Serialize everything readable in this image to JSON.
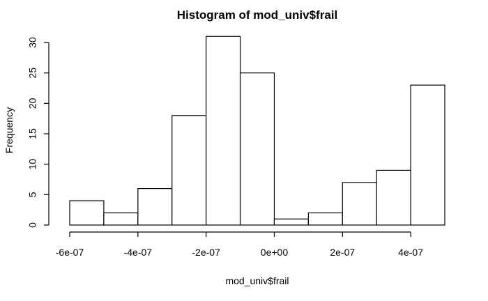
{
  "chart_data": {
    "type": "bar",
    "title": "Histogram of mod_univ$frail",
    "xlabel": "mod_univ$frail",
    "ylabel": "Frequency",
    "bins": [
      {
        "start": -6e-07,
        "end": -5e-07,
        "count": 4
      },
      {
        "start": -5e-07,
        "end": -4e-07,
        "count": 2
      },
      {
        "start": -4e-07,
        "end": -3e-07,
        "count": 6
      },
      {
        "start": -3e-07,
        "end": -2e-07,
        "count": 18
      },
      {
        "start": -2e-07,
        "end": -1e-07,
        "count": 31
      },
      {
        "start": -1e-07,
        "end": 0,
        "count": 25
      },
      {
        "start": 0,
        "end": 1e-07,
        "count": 1
      },
      {
        "start": 1e-07,
        "end": 2e-07,
        "count": 2
      },
      {
        "start": 2e-07,
        "end": 3e-07,
        "count": 7
      },
      {
        "start": 3e-07,
        "end": 4e-07,
        "count": 9
      },
      {
        "start": 4e-07,
        "end": 5e-07,
        "count": 23
      }
    ],
    "xlim": [
      -6e-07,
      5e-07
    ],
    "ylim": [
      0,
      31
    ],
    "x_ticks": [
      {
        "value": -6e-07,
        "label": "-6e-07"
      },
      {
        "value": -4e-07,
        "label": "-4e-07"
      },
      {
        "value": -2e-07,
        "label": "-2e-07"
      },
      {
        "value": 0,
        "label": "0e+00"
      },
      {
        "value": 2e-07,
        "label": "2e-07"
      },
      {
        "value": 4e-07,
        "label": "4e-07"
      }
    ],
    "y_ticks": [
      {
        "value": 0,
        "label": "0"
      },
      {
        "value": 5,
        "label": "5"
      },
      {
        "value": 10,
        "label": "10"
      },
      {
        "value": 15,
        "label": "15"
      },
      {
        "value": 20,
        "label": "20"
      },
      {
        "value": 25,
        "label": "25"
      },
      {
        "value": 30,
        "label": "30"
      }
    ],
    "grid": false,
    "colors": {
      "bar_fill": "#ffffff",
      "bar_stroke": "#000000"
    }
  }
}
